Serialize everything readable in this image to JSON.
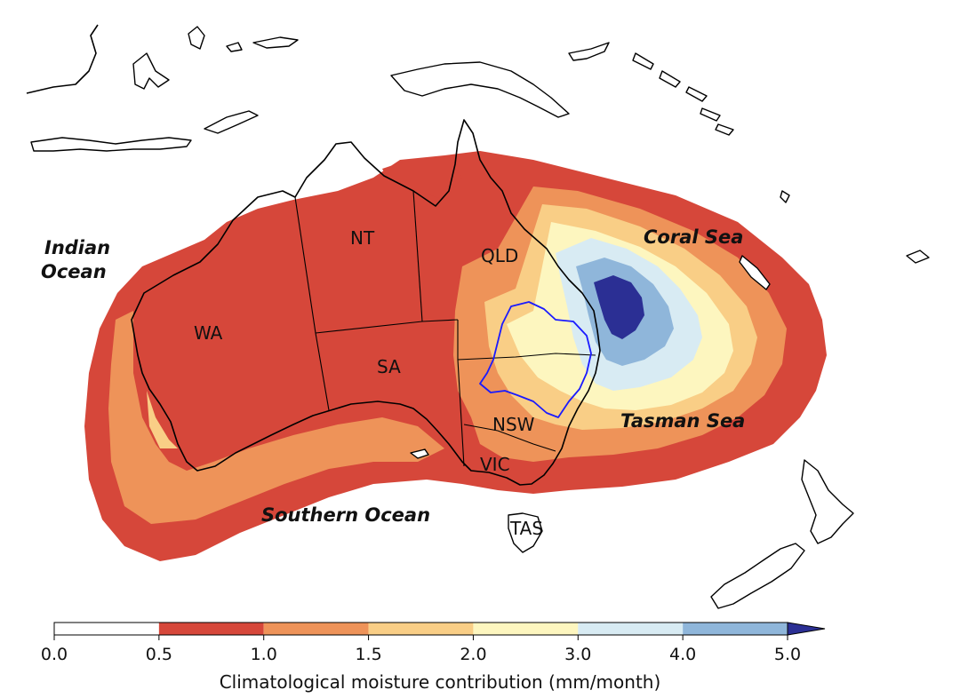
{
  "map": {
    "state_labels": [
      "WA",
      "NT",
      "SA",
      "QLD",
      "NSW",
      "VIC",
      "TAS"
    ],
    "ocean_labels": {
      "indian_line1": "Indian",
      "indian_line2": "Ocean",
      "coral": "Coral Sea",
      "tasman": "Tasman Sea",
      "southern": "Southern Ocean"
    }
  },
  "colorbar": {
    "title": "Climatological moisture contribution (mm/month)",
    "ticks": [
      "0.0",
      "0.5",
      "1.0",
      "1.5",
      "2.0",
      "3.0",
      "4.0",
      "5.0"
    ],
    "bins": [
      {
        "from": 0.0,
        "to": 0.5,
        "color": "#ffffff"
      },
      {
        "from": 0.5,
        "to": 1.0,
        "color": "#d6473a"
      },
      {
        "from": 1.0,
        "to": 1.5,
        "color": "#ee9359"
      },
      {
        "from": 1.5,
        "to": 2.0,
        "color": "#f9ce86"
      },
      {
        "from": 2.0,
        "to": 3.0,
        "color": "#fdf6bf"
      },
      {
        "from": 3.0,
        "to": 4.0,
        "color": "#d8ebf3"
      },
      {
        "from": 4.0,
        "to": 5.0,
        "color": "#8fb6da"
      },
      {
        "from": 5.0,
        "to": null,
        "color": "#2b2f94"
      }
    ],
    "extend": "max"
  }
}
